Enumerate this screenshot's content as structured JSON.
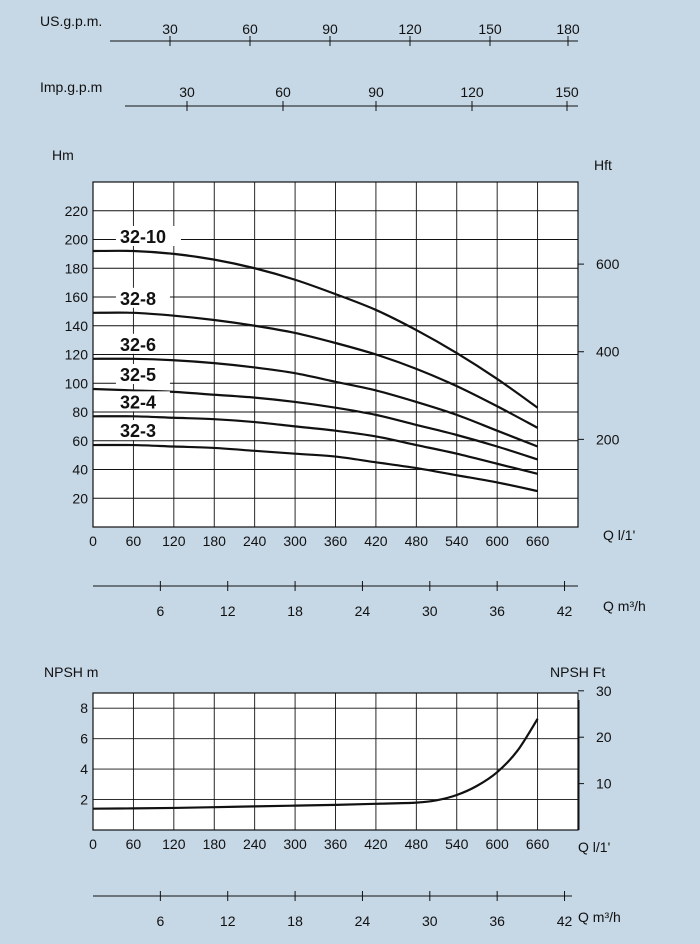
{
  "chart_data": [
    {
      "type": "line",
      "title": "",
      "top_scales": [
        {
          "label": "US.g.p.m.",
          "ticks": [
            "30",
            "60",
            "90",
            "120",
            "150",
            "180"
          ]
        },
        {
          "label": "Imp.g.p.m",
          "ticks": [
            "30",
            "60",
            "90",
            "120",
            "150"
          ]
        }
      ],
      "ylabel": "Hm",
      "ylabel_right": "Hft",
      "xlabel": "Q l/1'",
      "xlabel_secondary": "Q m³/h",
      "x_ticks": [
        "0",
        "60",
        "120",
        "180",
        "240",
        "300",
        "360",
        "420",
        "480",
        "540",
        "600",
        "660"
      ],
      "y_ticks": [
        "20",
        "40",
        "60",
        "80",
        "100",
        "120",
        "140",
        "160",
        "180",
        "200",
        "220"
      ],
      "y_right_ticks": [
        "200",
        "400",
        "600"
      ],
      "x2_ticks": [
        "6",
        "12",
        "18",
        "24",
        "30",
        "36",
        "42"
      ],
      "xlim": [
        0,
        720
      ],
      "ylim": [
        0,
        240
      ],
      "grid": true,
      "series": [
        {
          "name": "32-10",
          "x": [
            0,
            60,
            120,
            180,
            240,
            300,
            360,
            420,
            480,
            540,
            600,
            660
          ],
          "values": [
            192,
            192,
            190,
            186,
            180,
            172,
            162,
            151,
            137,
            121,
            103,
            83
          ]
        },
        {
          "name": "32-8",
          "x": [
            0,
            60,
            120,
            180,
            240,
            300,
            360,
            420,
            480,
            540,
            600,
            660
          ],
          "values": [
            149,
            149,
            147,
            144,
            140,
            135,
            128,
            120,
            110,
            98,
            84,
            69
          ]
        },
        {
          "name": "32-6",
          "x": [
            0,
            60,
            120,
            180,
            240,
            300,
            360,
            420,
            480,
            540,
            600,
            660
          ],
          "values": [
            117,
            117,
            116,
            114,
            111,
            107,
            101,
            95,
            87,
            78,
            67,
            56
          ]
        },
        {
          "name": "32-5",
          "x": [
            0,
            60,
            120,
            180,
            240,
            300,
            360,
            420,
            480,
            540,
            600,
            660
          ],
          "values": [
            96,
            95,
            94,
            92,
            90,
            87,
            83,
            78,
            71,
            64,
            56,
            47
          ]
        },
        {
          "name": "32-4",
          "x": [
            0,
            60,
            120,
            180,
            240,
            300,
            360,
            420,
            480,
            540,
            600,
            660
          ],
          "values": [
            77,
            77,
            76,
            75,
            73,
            70,
            67,
            63,
            57,
            51,
            44,
            37
          ]
        },
        {
          "name": "32-3",
          "x": [
            0,
            60,
            120,
            180,
            240,
            300,
            360,
            420,
            480,
            540,
            600,
            660
          ],
          "values": [
            57,
            57,
            56,
            55,
            53,
            51,
            49,
            45,
            41,
            36,
            31,
            25
          ]
        }
      ]
    },
    {
      "type": "line",
      "title": "",
      "ylabel": "NPSH  m",
      "ylabel_right": "NPSH  Ft",
      "xlabel": "Q l/1'",
      "xlabel_secondary": "Q m³/h",
      "x_ticks": [
        "0",
        "60",
        "120",
        "180",
        "240",
        "300",
        "360",
        "420",
        "480",
        "540",
        "600",
        "660"
      ],
      "y_ticks": [
        "2",
        "4",
        "6",
        "8"
      ],
      "y_right_ticks": [
        "10",
        "20",
        "30"
      ],
      "x2_ticks": [
        "6",
        "12",
        "18",
        "24",
        "30",
        "36",
        "42"
      ],
      "xlim": [
        0,
        720
      ],
      "ylim": [
        0,
        9
      ],
      "grid": true,
      "series": [
        {
          "name": "",
          "x": [
            0,
            60,
            120,
            180,
            240,
            300,
            360,
            420,
            480,
            510,
            540,
            570,
            600,
            630,
            660
          ],
          "values": [
            1.4,
            1.42,
            1.45,
            1.5,
            1.55,
            1.6,
            1.65,
            1.72,
            1.8,
            1.95,
            2.3,
            2.9,
            3.8,
            5.2,
            7.3
          ]
        }
      ]
    }
  ]
}
